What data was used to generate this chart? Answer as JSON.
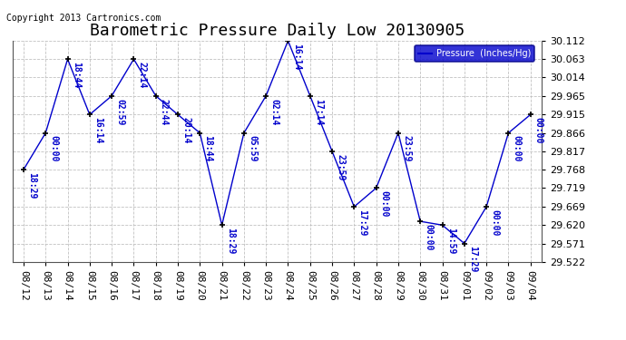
{
  "title": "Barometric Pressure Daily Low 20130905",
  "copyright": "Copyright 2013 Cartronics.com",
  "legend_label": "Pressure  (Inches/Hg)",
  "dates": [
    "08/12",
    "08/13",
    "08/14",
    "08/15",
    "08/16",
    "08/17",
    "08/18",
    "08/19",
    "08/20",
    "08/21",
    "08/22",
    "08/23",
    "08/24",
    "08/25",
    "08/26",
    "08/27",
    "08/28",
    "08/29",
    "08/30",
    "08/31",
    "09/01",
    "09/02",
    "09/03",
    "09/04"
  ],
  "values": [
    29.768,
    29.866,
    30.063,
    29.915,
    29.965,
    30.063,
    29.965,
    29.915,
    29.866,
    29.62,
    29.866,
    29.965,
    30.112,
    29.965,
    29.817,
    29.669,
    29.719,
    29.866,
    29.63,
    29.62,
    29.571,
    29.669,
    29.866,
    29.915
  ],
  "time_labels": [
    "18:29",
    "00:00",
    "18:44",
    "16:14",
    "02:59",
    "22:14",
    "22:44",
    "20:14",
    "18:44",
    "18:29",
    "05:59",
    "02:14",
    "16:14",
    "17:14",
    "23:59",
    "17:29",
    "00:00",
    "23:59",
    "00:00",
    "14:59",
    "17:29",
    "00:00",
    "00:00",
    "00:00"
  ],
  "line_color": "#0000CC",
  "marker_color": "#000000",
  "label_color": "#0000CC",
  "bg_color": "#ffffff",
  "grid_color": "#bbbbbb",
  "ylim_min": 29.522,
  "ylim_max": 30.112,
  "yticks": [
    29.522,
    29.571,
    29.62,
    29.669,
    29.719,
    29.768,
    29.817,
    29.866,
    29.915,
    29.965,
    30.014,
    30.063,
    30.112
  ],
  "title_fontsize": 13,
  "label_fontsize": 7,
  "tick_fontsize": 8,
  "copyright_fontsize": 7,
  "legend_facecolor": "#0000CC",
  "legend_textcolor": "#ffffff"
}
